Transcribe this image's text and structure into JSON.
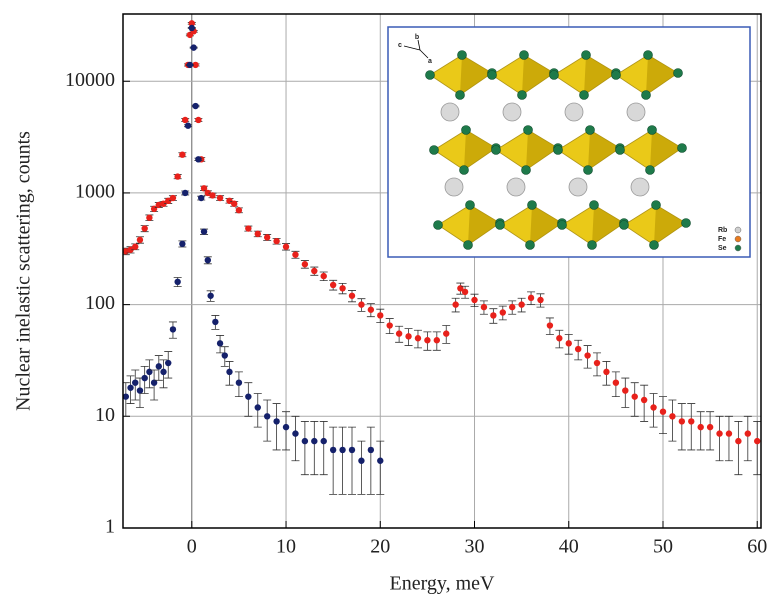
{
  "chart_data": {
    "type": "scatter",
    "x_label": "Energy, meV",
    "y_label": "Nuclear inelastic scattering, counts",
    "xlim": [
      -7.3,
      60.4
    ],
    "xticks": [
      0,
      10,
      20,
      30,
      40,
      50,
      60
    ],
    "ylim": [
      1,
      40000
    ],
    "yticks": [
      1,
      10,
      100,
      1000,
      10000
    ],
    "log_y": true,
    "grid": true,
    "series": [
      {
        "color": "#e8211b",
        "x": [
          -7,
          -6.5,
          -6,
          -5.5,
          -5,
          -4.5,
          -4,
          -3.5,
          -3,
          -2.5,
          -2,
          -1.5,
          -1,
          -0.7,
          -0.4,
          -0.2,
          0,
          0.2,
          0.4,
          0.7,
          1,
          1.3,
          1.7,
          2.2,
          3,
          4,
          4.5,
          5,
          6,
          7,
          8,
          9,
          10,
          11,
          12,
          13,
          14,
          15,
          16,
          17,
          18,
          19,
          20,
          21,
          22,
          23,
          24,
          25,
          26,
          27,
          28,
          28.5,
          29,
          30,
          31,
          32,
          33,
          34,
          35,
          36,
          37,
          38,
          39,
          40,
          41,
          42,
          43,
          44,
          45,
          46,
          47,
          48,
          49,
          50,
          51,
          52,
          53,
          54,
          55,
          56,
          57,
          58,
          59,
          60
        ],
        "values": [
          300,
          310,
          330,
          380,
          480,
          600,
          720,
          780,
          800,
          850,
          900,
          1400,
          2200,
          4500,
          14000,
          26000,
          33000,
          28000,
          14000,
          4500,
          2000,
          1100,
          1000,
          950,
          900,
          850,
          800,
          700,
          480,
          430,
          400,
          370,
          330,
          280,
          230,
          200,
          180,
          150,
          140,
          120,
          100,
          90,
          80,
          65,
          55,
          52,
          50,
          48,
          48,
          55,
          100,
          140,
          130,
          110,
          95,
          80,
          85,
          95,
          100,
          115,
          110,
          65,
          50,
          45,
          40,
          35,
          30,
          25,
          20,
          17,
          15,
          14,
          12,
          11,
          10,
          9,
          9,
          8,
          8,
          7,
          7,
          6,
          7,
          6
        ],
        "errors": [
          20,
          20,
          20,
          25,
          30,
          35,
          40,
          40,
          40,
          45,
          45,
          60,
          90,
          150,
          300,
          500,
          600,
          500,
          300,
          150,
          80,
          50,
          45,
          45,
          45,
          40,
          40,
          35,
          25,
          25,
          25,
          22,
          22,
          20,
          18,
          17,
          16,
          15,
          15,
          14,
          13,
          12,
          11,
          10,
          9,
          9,
          9,
          9,
          9,
          10,
          14,
          16,
          16,
          14,
          13,
          12,
          12,
          13,
          14,
          15,
          15,
          11,
          9,
          9,
          8,
          8,
          7,
          6,
          5,
          5,
          5,
          5,
          4,
          4,
          4,
          4,
          4,
          3,
          3,
          3,
          3,
          3,
          3,
          3
        ]
      },
      {
        "color": "#15216b",
        "x": [
          -7,
          -6.5,
          -6,
          -5.5,
          -5,
          -4.5,
          -4,
          -3.5,
          -3,
          -2.5,
          -2,
          -1.5,
          -1,
          -0.7,
          -0.4,
          -0.2,
          0,
          0.2,
          0.4,
          0.7,
          1,
          1.3,
          1.7,
          2,
          2.5,
          3,
          3.5,
          4,
          5,
          6,
          7,
          8,
          9,
          10,
          11,
          12,
          13,
          14,
          15,
          16,
          17,
          18,
          19,
          20
        ],
        "values": [
          15,
          18,
          20,
          17,
          22,
          25,
          20,
          28,
          25,
          30,
          60,
          160,
          350,
          1000,
          4000,
          14000,
          30000,
          20000,
          6000,
          2000,
          900,
          450,
          250,
          120,
          70,
          45,
          35,
          25,
          20,
          15,
          12,
          10,
          9,
          8,
          7,
          6,
          6,
          6,
          5,
          5,
          5,
          4,
          5,
          4
        ],
        "errors": [
          5,
          5,
          6,
          5,
          6,
          7,
          6,
          7,
          7,
          8,
          10,
          15,
          22,
          40,
          80,
          150,
          250,
          200,
          100,
          50,
          35,
          25,
          18,
          13,
          10,
          8,
          7,
          6,
          5,
          5,
          4,
          4,
          4,
          3,
          3,
          3,
          3,
          3,
          3,
          3,
          3,
          2,
          3,
          2
        ]
      }
    ],
    "inset": {
      "axes": [
        "c",
        "b",
        "a"
      ],
      "legend": [
        "Rb",
        "Fe",
        "Se"
      ]
    }
  }
}
